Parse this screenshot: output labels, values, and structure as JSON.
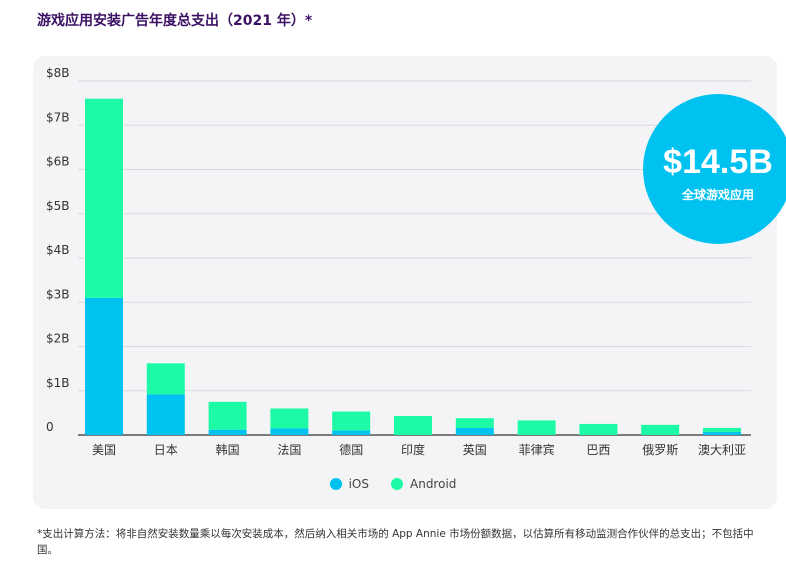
{
  "title": "游戏应用安装广告年度总支出（2021 年）*",
  "badge": {
    "value": "$14.5B",
    "label": "全球游戏应用"
  },
  "colors": {
    "ios": "#00c2f0",
    "android": "#1dfaa6",
    "badge": "#00c2f0",
    "title": "#3b1164"
  },
  "footnote": "*支出计算方法：将非自然安装数量乘以每次安装成本，然后纳入相关市场的 App Annie 市场份额数据，以估算所有移动监测合作伙伴的总支出；不包括中国。",
  "chart_data": {
    "type": "bar",
    "stacked": true,
    "categories": [
      "美国",
      "日本",
      "韩国",
      "法国",
      "德国",
      "印度",
      "英国",
      "菲律宾",
      "巴西",
      "俄罗斯",
      "澳大利亚"
    ],
    "series": [
      {
        "name": "iOS",
        "values": [
          3.1,
          0.92,
          0.12,
          0.15,
          0.1,
          0.0,
          0.16,
          0.0,
          0.0,
          0.0,
          0.07
        ]
      },
      {
        "name": "Android",
        "values": [
          4.5,
          0.7,
          0.63,
          0.45,
          0.43,
          0.43,
          0.22,
          0.33,
          0.25,
          0.23,
          0.09
        ]
      }
    ],
    "yticks": [
      "0",
      "$1B",
      "$2B",
      "$3B",
      "$4B",
      "$5B",
      "$6B",
      "$7B",
      "$8B"
    ],
    "ylim": [
      0,
      8
    ],
    "grid": true,
    "legend": "bottom-center"
  }
}
